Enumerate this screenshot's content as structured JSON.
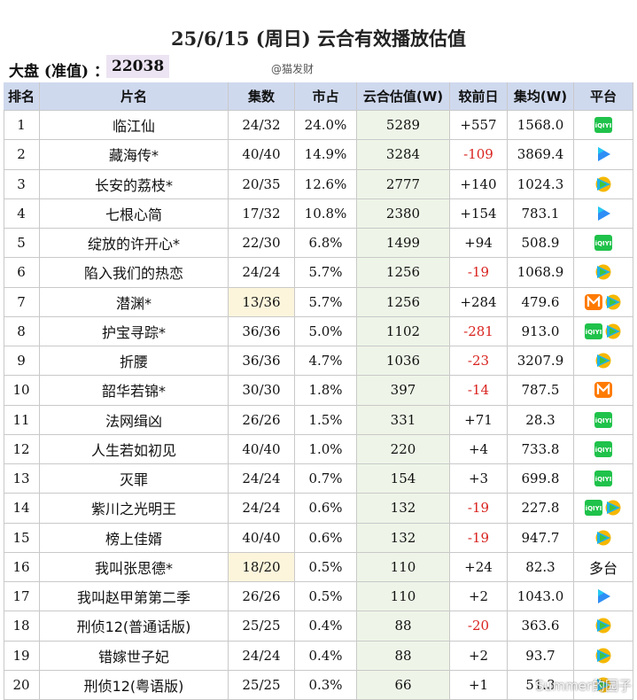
{
  "header": {
    "title": "25/6/15 (周日) 云合有效播放估值",
    "total_label": "大盘 (准值) ：",
    "total_value": "22038",
    "credit": "@猫发财"
  },
  "table": {
    "columns": [
      "排名",
      "片名",
      "集数",
      "市占",
      "云合估值(W)",
      "较前日",
      "集均(W)",
      "平台"
    ],
    "rows": [
      {
        "cells": [
          "1",
          "临江仙",
          "24/32",
          "24.0%",
          "5289",
          "+557",
          "1568.0"
        ]
      },
      {
        "cells": [
          "2",
          "藏海传*",
          "40/40",
          "14.9%",
          "3284",
          "-109",
          "3869.4"
        ]
      },
      {
        "cells": [
          "3",
          "长安的荔枝*",
          "20/35",
          "12.6%",
          "2777",
          "+140",
          "1024.3"
        ]
      },
      {
        "cells": [
          "4",
          "七根心简",
          "17/32",
          "10.8%",
          "2380",
          "+154",
          "783.1"
        ]
      },
      {
        "cells": [
          "5",
          "绽放的许开心*",
          "22/30",
          "6.8%",
          "1499",
          "+94",
          "508.9"
        ]
      },
      {
        "cells": [
          "6",
          "陷入我们的热恋",
          "24/24",
          "5.7%",
          "1256",
          "-19",
          "1068.9"
        ]
      },
      {
        "cells": [
          "7",
          "潜渊*",
          "13/36",
          "5.7%",
          "1256",
          "+284",
          "479.6"
        ]
      },
      {
        "cells": [
          "8",
          "护宝寻踪*",
          "36/36",
          "5.0%",
          "1102",
          "-281",
          "913.0"
        ]
      },
      {
        "cells": [
          "9",
          "折腰",
          "36/36",
          "4.7%",
          "1036",
          "-23",
          "3207.9"
        ]
      },
      {
        "cells": [
          "10",
          "韶华若锦*",
          "30/30",
          "1.8%",
          "397",
          "-14",
          "787.5"
        ]
      },
      {
        "cells": [
          "11",
          "法网缉凶",
          "26/26",
          "1.5%",
          "331",
          "+71",
          "28.3"
        ]
      },
      {
        "cells": [
          "12",
          "人生若如初见",
          "40/40",
          "1.0%",
          "220",
          "+4",
          "733.8"
        ]
      },
      {
        "cells": [
          "13",
          "灭罪",
          "24/24",
          "0.7%",
          "154",
          "+3",
          "699.8"
        ]
      },
      {
        "cells": [
          "14",
          "紫川之光明王",
          "24/24",
          "0.6%",
          "132",
          "-19",
          "227.8"
        ]
      },
      {
        "cells": [
          "15",
          "榜上佳婿",
          "40/40",
          "0.6%",
          "132",
          "-19",
          "947.7"
        ]
      },
      {
        "cells": [
          "16",
          "我叫张思德*",
          "18/20",
          "0.5%",
          "110",
          "+24",
          "82.3"
        ],
        "platform": "多台"
      },
      {
        "cells": [
          "17",
          "我叫赵甲第第二季",
          "26/26",
          "0.5%",
          "110",
          "+2",
          "1043.0"
        ]
      },
      {
        "cells": [
          "18",
          "刑侦12(普通话版)",
          "25/25",
          "0.4%",
          "88",
          "-20",
          "363.6"
        ]
      },
      {
        "cells": [
          "19",
          "错嫁世子妃",
          "24/24",
          "0.4%",
          "88",
          "+2",
          "93.7"
        ]
      },
      {
        "cells": [
          "20",
          "刑侦12(粤语版)",
          "25/25",
          "0.3%",
          "66",
          "+1",
          "51.3"
        ]
      }
    ]
  },
  "watermark": "Summer的园子"
}
